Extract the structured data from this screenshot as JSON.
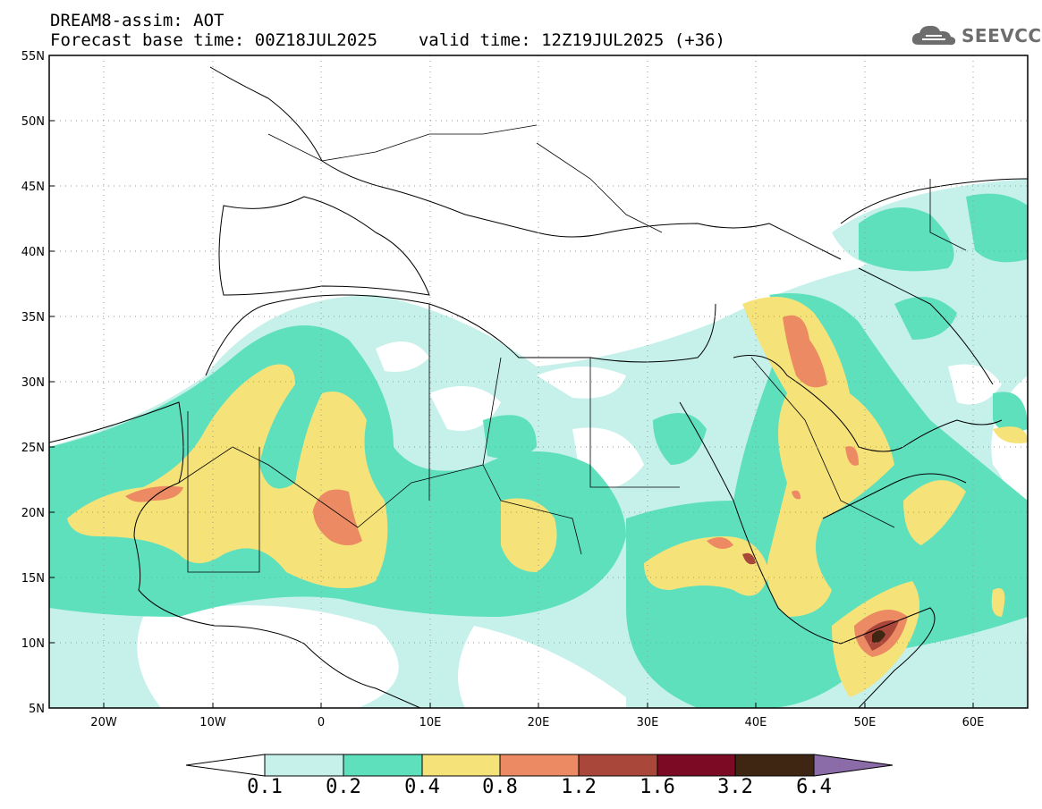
{
  "header": {
    "title_line1": "DREAM8-assim: AOT",
    "forecast_base": "Forecast base time: 00Z18JUL2025",
    "valid_time": "valid time: 12Z19JUL2025 (+36)"
  },
  "logo": {
    "text": "SEEVCCC"
  },
  "map": {
    "variable": "Aerosol Optical Thickness",
    "lon_range": [
      -25,
      65
    ],
    "lat_range": [
      5,
      55
    ],
    "lat_labels": [
      "55N",
      "50N",
      "45N",
      "40N",
      "35N",
      "30N",
      "25N",
      "20N",
      "15N",
      "10N",
      "5N"
    ],
    "lon_labels": [
      "20W",
      "10W",
      "0",
      "10E",
      "20E",
      "30E",
      "40E",
      "50E",
      "60E"
    ]
  },
  "legend": {
    "levels": [
      "0.1",
      "0.2",
      "0.4",
      "0.8",
      "1.2",
      "1.6",
      "3.2",
      "6.4"
    ],
    "colors": {
      "below": "#ffffff",
      "c1": "#c5f1ea",
      "c2": "#5fe0bd",
      "c3": "#f5e37a",
      "c4": "#ec8a63",
      "c5": "#a9473a",
      "c6": "#7c0a24",
      "c7": "#3e2612",
      "above": "#8b6ba8"
    }
  }
}
